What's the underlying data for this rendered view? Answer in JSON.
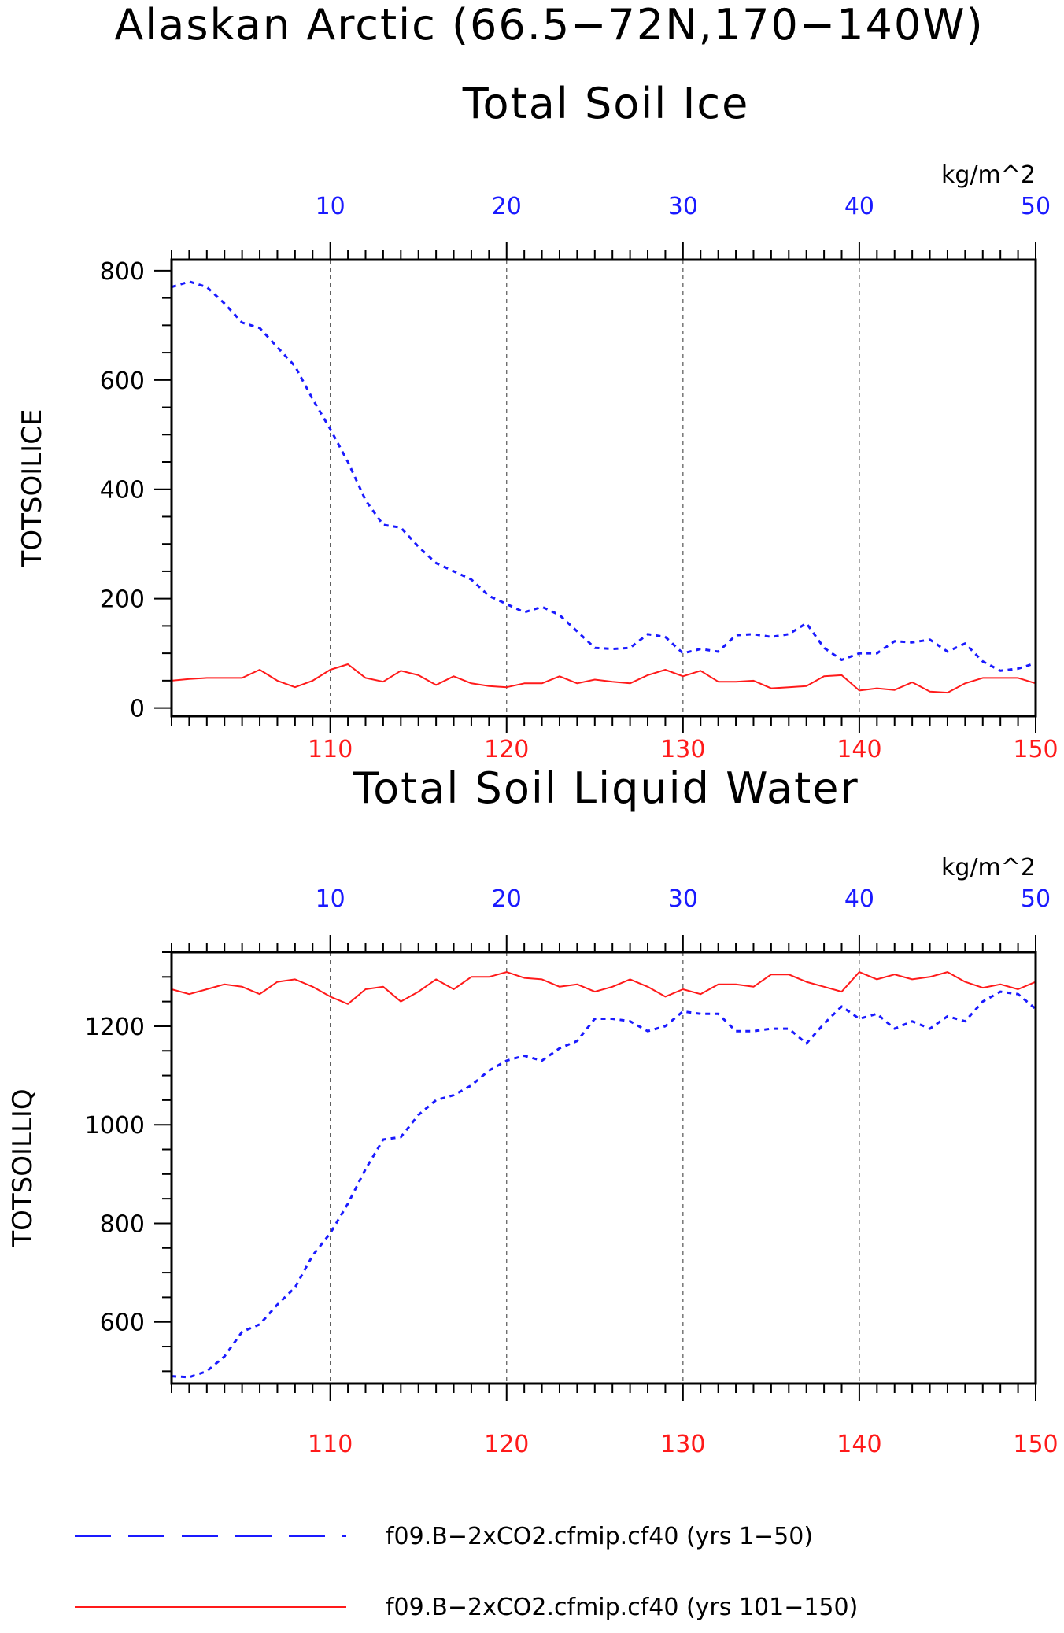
{
  "page": {
    "title": "Alaskan Arctic (66.5−72N,170−140W)"
  },
  "colors": {
    "blue": "#1a1aff",
    "red": "#ff1a1a",
    "axis": "#000000",
    "grid": "#555555"
  },
  "legend": {
    "items": [
      {
        "label": "f09.B−2xCO2.cfmip.cf40 (yrs 1−50)",
        "color": "#1a1aff",
        "style": "dashed"
      },
      {
        "label": "f09.B−2xCO2.cfmip.cf40 (yrs 101−150)",
        "color": "#ff1a1a",
        "style": "solid"
      }
    ]
  },
  "chart_data": [
    {
      "type": "line",
      "title": "Total Soil Ice",
      "ylabel": "TOTSOILICE",
      "units": "kg/m^2",
      "ylim": [
        -15,
        820
      ],
      "yticks": [
        0,
        200,
        400,
        600,
        800
      ],
      "top_axis": {
        "range": [
          1,
          50
        ],
        "ticks": [
          10,
          20,
          30,
          40,
          50
        ]
      },
      "bottom_axis": {
        "range": [
          101,
          150
        ],
        "ticks": [
          110,
          120,
          130,
          140,
          150
        ]
      },
      "grid": "vertical dashed at major ticks",
      "series": [
        {
          "axis": "top",
          "x_start": 1,
          "values": [
            770,
            780,
            770,
            740,
            705,
            695,
            660,
            625,
            565,
            510,
            450,
            380,
            335,
            330,
            295,
            265,
            250,
            235,
            205,
            190,
            175,
            185,
            170,
            140,
            110,
            108,
            110,
            135,
            130,
            100,
            108,
            103,
            133,
            135,
            130,
            135,
            155,
            110,
            88,
            100,
            100,
            122,
            120,
            125,
            103,
            118,
            85,
            68,
            72,
            82
          ]
        },
        {
          "axis": "bottom",
          "x_start": 101,
          "values": [
            50,
            53,
            55,
            55,
            55,
            70,
            50,
            38,
            50,
            70,
            80,
            55,
            48,
            68,
            60,
            42,
            58,
            45,
            40,
            38,
            45,
            45,
            58,
            45,
            52,
            48,
            45,
            60,
            70,
            58,
            68,
            48,
            48,
            50,
            36,
            38,
            40,
            58,
            60,
            32,
            36,
            33,
            47,
            30,
            28,
            45,
            55,
            55,
            55,
            45
          ]
        }
      ]
    },
    {
      "type": "line",
      "title": "Total Soil Liquid Water",
      "ylabel": "TOTSOILLIQ",
      "units": "kg/m^2",
      "ylim": [
        475,
        1350
      ],
      "yticks": [
        600,
        800,
        1000,
        1200
      ],
      "top_axis": {
        "range": [
          1,
          50
        ],
        "ticks": [
          10,
          20,
          30,
          40,
          50
        ]
      },
      "bottom_axis": {
        "range": [
          101,
          150
        ],
        "ticks": [
          110,
          120,
          130,
          140,
          150
        ]
      },
      "grid": "vertical dashed at major ticks",
      "series": [
        {
          "axis": "top",
          "x_start": 1,
          "values": [
            490,
            488,
            500,
            530,
            580,
            595,
            635,
            670,
            735,
            780,
            840,
            910,
            970,
            975,
            1020,
            1050,
            1060,
            1080,
            1110,
            1130,
            1140,
            1130,
            1155,
            1170,
            1215,
            1215,
            1210,
            1190,
            1200,
            1230,
            1225,
            1225,
            1190,
            1190,
            1195,
            1195,
            1165,
            1205,
            1240,
            1215,
            1225,
            1195,
            1210,
            1195,
            1220,
            1210,
            1250,
            1270,
            1265,
            1235
          ]
        },
        {
          "axis": "bottom",
          "x_start": 101,
          "values": [
            1275,
            1265,
            1275,
            1285,
            1280,
            1265,
            1290,
            1295,
            1280,
            1260,
            1245,
            1275,
            1280,
            1250,
            1270,
            1295,
            1275,
            1300,
            1300,
            1310,
            1298,
            1295,
            1280,
            1285,
            1270,
            1280,
            1295,
            1280,
            1260,
            1275,
            1265,
            1285,
            1285,
            1280,
            1305,
            1305,
            1290,
            1280,
            1270,
            1310,
            1295,
            1305,
            1295,
            1300,
            1310,
            1290,
            1278,
            1285,
            1275,
            1290
          ]
        }
      ]
    }
  ]
}
